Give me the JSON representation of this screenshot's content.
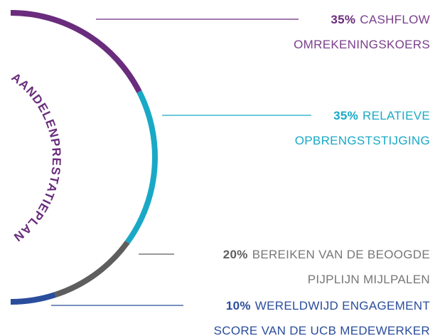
{
  "chart_data": {
    "type": "semicircle-donut",
    "title": "AANDELENPRESTATIEPLAN",
    "categories": [
      [
        "CASHFLOW",
        "OMREKENINGSKOERS"
      ],
      [
        "RELATIEVE",
        "OPBRENGSTSTIJGING"
      ],
      [
        "BEREIKEN VAN DE BEOOGDE",
        "PIJPLIJN MIJLPALEN"
      ],
      [
        "WERELDWIJD ENGAGEMENT",
        "SCORE VAN DE UCB MEDEWERKER"
      ]
    ],
    "values": [
      35,
      35,
      20,
      10
    ],
    "value_labels": [
      "35%",
      "35%",
      "20%",
      "10%"
    ],
    "colors": [
      "#6a2c7c",
      "#19a9c6",
      "#5e5e5e",
      "#2a4d9c"
    ],
    "title_color": "#6a2c7c"
  }
}
